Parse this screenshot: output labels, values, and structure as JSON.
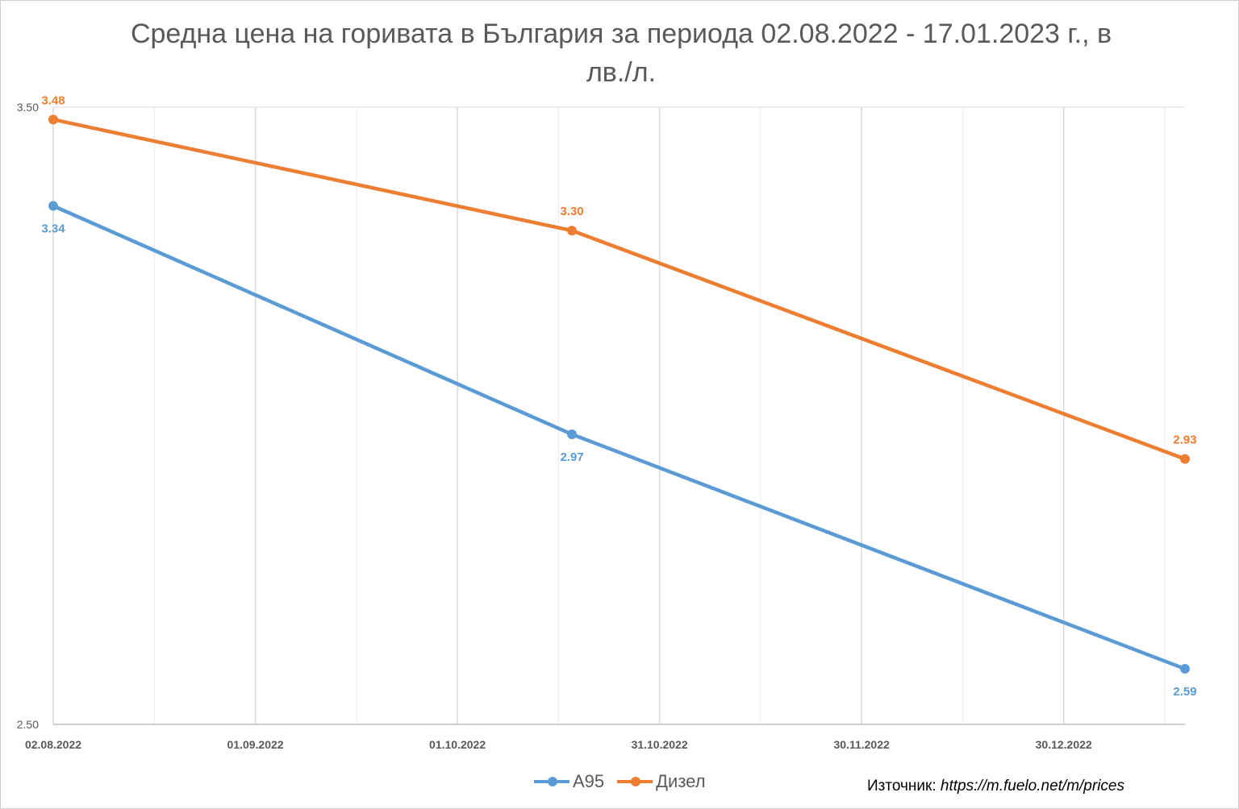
{
  "chart_data": {
    "type": "line",
    "title": "Средна цена на горивата в България за периода 02.08.2022 - 17.01.2023 г., в лв./л.",
    "x_tick_labels": [
      "02.08.2022",
      "01.09.2022",
      "01.10.2022",
      "31.10.2022",
      "30.11.2022",
      "30.12.2022"
    ],
    "x_dates": [
      "02.08.2022",
      "18.10.2022",
      "17.01.2023"
    ],
    "y_tick_labels": [
      "3.50",
      "2.50"
    ],
    "ylim": [
      2.5,
      3.5
    ],
    "xlim": [
      "02.08.2022",
      "17.01.2023"
    ],
    "grid": true,
    "legend_position": "bottom",
    "series": [
      {
        "name": "А95",
        "color": "#5B9BD5",
        "values": [
          3.34,
          2.97,
          2.59
        ],
        "labels": [
          "3.34",
          "2.97",
          "2.59"
        ]
      },
      {
        "name": "Дизел",
        "color": "#ED7D31",
        "values": [
          3.48,
          3.3,
          2.93
        ],
        "labels": [
          "3.48",
          "3.30",
          "2.93"
        ]
      }
    ]
  },
  "source": {
    "prefix": "Източник:",
    "url": "https://m.fuelo.net/m/prices"
  }
}
